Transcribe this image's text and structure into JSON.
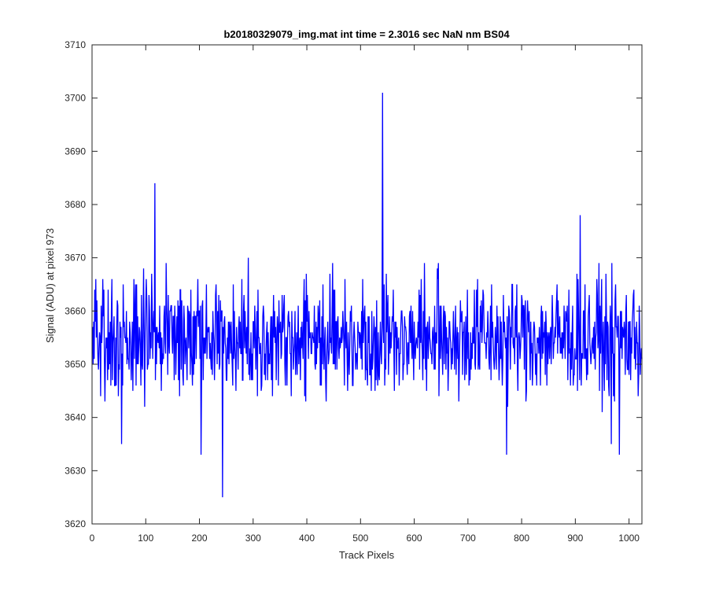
{
  "chart_data": {
    "type": "line",
    "title": "b20180329079_img.mat int time = 2.3016 sec  NaN nm BS04",
    "xlabel": "Track Pixels",
    "ylabel": "Signal (ADU) at pixel 973",
    "xlim": [
      0,
      1024
    ],
    "ylim": [
      3620,
      3710
    ],
    "xticks": [
      0,
      100,
      200,
      300,
      400,
      500,
      600,
      700,
      800,
      900,
      1000
    ],
    "yticks": [
      3620,
      3630,
      3640,
      3650,
      3660,
      3670,
      3680,
      3690,
      3700,
      3710
    ],
    "grid": false,
    "legend": "none",
    "series_color": "#0000ff",
    "series": [
      {
        "baseline": 3655,
        "noise_halfwidth": 8.5,
        "x_start": 1,
        "x_end": 1024,
        "spikes": [
          {
            "x": 117,
            "y": 3684
          },
          {
            "x": 541,
            "y": 3701
          },
          {
            "x": 909,
            "y": 3678
          },
          {
            "x": 243,
            "y": 3625
          },
          {
            "x": 55,
            "y": 3635
          },
          {
            "x": 203,
            "y": 3633
          },
          {
            "x": 772,
            "y": 3633
          },
          {
            "x": 967,
            "y": 3635
          },
          {
            "x": 982,
            "y": 3633
          }
        ]
      }
    ]
  }
}
